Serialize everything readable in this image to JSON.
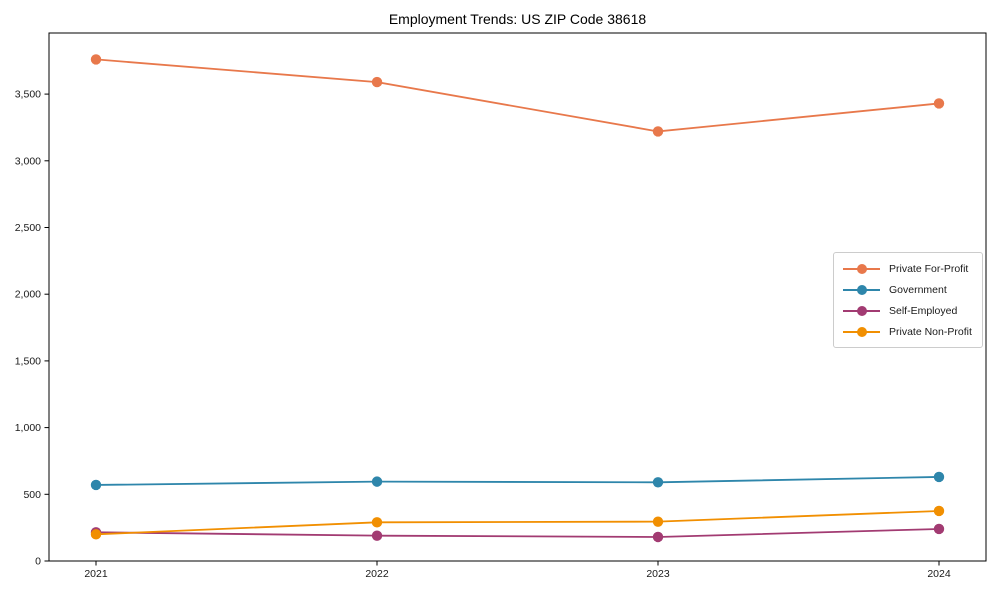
{
  "chart_data": {
    "type": "line",
    "title": "Employment Trends: US ZIP Code 38618",
    "categories": [
      "2021",
      "2022",
      "2023",
      "2024"
    ],
    "series": [
      {
        "name": "Private For-Profit",
        "color": "#E8784B",
        "values": [
          3760,
          3590,
          3220,
          3430
        ]
      },
      {
        "name": "Government",
        "color": "#2E86AB",
        "values": [
          570,
          595,
          590,
          630
        ]
      },
      {
        "name": "Self-Employed",
        "color": "#A23B72",
        "values": [
          215,
          190,
          180,
          240
        ]
      },
      {
        "name": "Private Non-Profit",
        "color": "#F18F01",
        "values": [
          200,
          290,
          295,
          375
        ]
      }
    ],
    "xlabel": "",
    "ylabel": "",
    "ylim": [
      0,
      3958
    ],
    "ytick_values": [
      0,
      500,
      1000,
      1500,
      2000,
      2500,
      3000,
      3500
    ],
    "ytick_labels": [
      "0",
      "500",
      "1,000",
      "1,500",
      "2,000",
      "2,500",
      "3,000",
      "3,500"
    ],
    "grid": false,
    "legend_position": "center-right",
    "axis_color": "#000000",
    "tick_label_color": "#1a1a1a"
  }
}
